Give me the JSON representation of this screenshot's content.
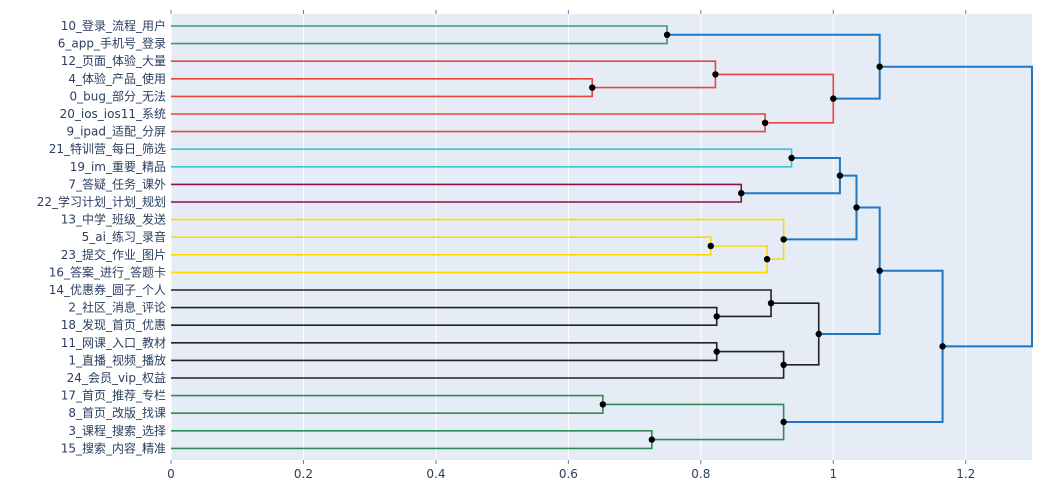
{
  "chart_data": {
    "type": "dendrogram",
    "orientation": "horizontal",
    "xlim": [
      0,
      1.3
    ],
    "x_ticks": [
      0,
      0.2,
      0.4,
      0.6,
      0.8,
      1,
      1.2
    ],
    "x_tick_labels": [
      "0",
      "0.2",
      "0.4",
      "0.6",
      "0.8",
      "1",
      "1.2"
    ],
    "grid": true,
    "colors": {
      "plot_bg": "#e5ecf6",
      "tick_text": "#2a3f5f",
      "root_blue": "#1f77c4",
      "green": "#3d9970",
      "red": "#e4473c",
      "cyan": "#3cc5d1",
      "maroon": "#85144b",
      "yellow": "#ffdc00",
      "black": "#222222",
      "seagreen": "#2e8b57"
    },
    "leaves": [
      "10_登录_流程_用户",
      "6_app_手机号_登录",
      "12_页面_体验_大量",
      "4_体验_产品_使用",
      "0_bug_部分_无法",
      "20_ios_ios11_系统",
      "9_ipad_适配_分屏",
      "21_特训营_每日_筛选",
      "19_im_重要_精品",
      "7_答疑_任务_课外",
      "22_学习计划_计划_规划",
      "13_中学_班级_发送",
      "5_ai_练习_录音",
      "23_提交_作业_图片",
      "16_答案_进行_答题卡",
      "14_优惠券_圆子_个人",
      "2_社区_消息_评论",
      "18_发现_首页_优惠",
      "11_网课_入口_教材",
      "1_直播_视频_播放",
      "24_会员_vip_权益",
      "17_首页_推荐_专栏",
      "8_首页_改版_找课",
      "3_课程_搜索_选择",
      "15_搜索_内容_精准"
    ],
    "merges": [
      {
        "a": 0,
        "b": 1,
        "h": 0.749,
        "color": "green"
      },
      {
        "a": 3,
        "b": 4,
        "h": 0.636,
        "color": "red"
      },
      {
        "a": 2,
        "b": "m1",
        "h": 0.822,
        "color": "red"
      },
      {
        "a": 5,
        "b": 6,
        "h": 0.897,
        "color": "red"
      },
      {
        "a": "m2",
        "b": "m3",
        "h": 1.0,
        "color": "red"
      },
      {
        "a": "m0",
        "b": "m4",
        "h": 1.07,
        "color": "root_blue"
      },
      {
        "a": 7,
        "b": 8,
        "h": 0.937,
        "color": "cyan"
      },
      {
        "a": 9,
        "b": 10,
        "h": 0.861,
        "color": "maroon"
      },
      {
        "a": "m6",
        "b": "m7",
        "h": 1.01,
        "color": "root_blue"
      },
      {
        "a": 12,
        "b": 13,
        "h": 0.815,
        "color": "yellow"
      },
      {
        "a": "m9",
        "b": 14,
        "h": 0.9,
        "color": "yellow"
      },
      {
        "a": 11,
        "b": "m10",
        "h": 0.925,
        "color": "yellow"
      },
      {
        "a": "m8",
        "b": "m11",
        "h": 1.035,
        "color": "root_blue"
      },
      {
        "a": 16,
        "b": 17,
        "h": 0.824,
        "color": "black"
      },
      {
        "a": 15,
        "b": "m13",
        "h": 0.906,
        "color": "black"
      },
      {
        "a": 18,
        "b": 19,
        "h": 0.824,
        "color": "black"
      },
      {
        "a": "m15",
        "b": 20,
        "h": 0.925,
        "color": "black"
      },
      {
        "a": "m14",
        "b": "m16",
        "h": 0.978,
        "color": "black"
      },
      {
        "a": "m12",
        "b": "m17",
        "h": 1.07,
        "color": "root_blue"
      },
      {
        "a": 21,
        "b": 22,
        "h": 0.652,
        "color": "seagreen"
      },
      {
        "a": 23,
        "b": 24,
        "h": 0.726,
        "color": "seagreen"
      },
      {
        "a": "m19",
        "b": "m20",
        "h": 0.925,
        "color": "seagreen"
      },
      {
        "a": "m18",
        "b": "m21",
        "h": 1.165,
        "color": "root_blue"
      },
      {
        "a": "m5",
        "b": "m22",
        "h": 1.3,
        "color": "root_blue"
      }
    ]
  }
}
